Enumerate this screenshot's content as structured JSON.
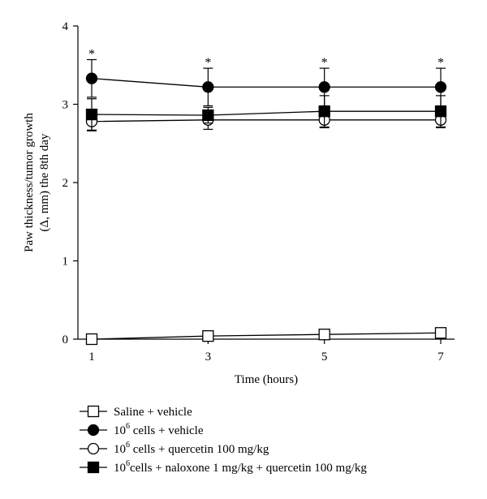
{
  "chart_data": {
    "type": "line",
    "xlabel": "Time (hours)",
    "ylabel_line1": "Paw thickness/tumor growth",
    "ylabel_line2": "(Δ, mm) the 8th day",
    "x": [
      1,
      3,
      5,
      7
    ],
    "xlim": [
      1,
      7
    ],
    "ylim": [
      0,
      4
    ],
    "xticks": [
      1,
      3,
      5,
      7
    ],
    "yticks": [
      0,
      1,
      2,
      3,
      4
    ],
    "grid": false,
    "legend_position": "bottom",
    "series": [
      {
        "name_parts": [
          "Saline + vehicle"
        ],
        "marker": "square-open",
        "values": [
          0.0,
          0.04,
          0.06,
          0.08
        ],
        "errors": [
          0.02,
          0.02,
          0.02,
          0.02
        ]
      },
      {
        "name_parts": [
          "10",
          "6",
          " cells + vehicle"
        ],
        "marker": "circle-filled",
        "values": [
          3.33,
          3.22,
          3.22,
          3.22
        ],
        "errors": [
          0.24,
          0.24,
          0.24,
          0.24
        ]
      },
      {
        "name_parts": [
          "10",
          "6",
          " cells + quercetin 100 mg/kg"
        ],
        "marker": "circle-open",
        "values": [
          2.78,
          2.8,
          2.8,
          2.8
        ],
        "errors": [
          0.12,
          0.12,
          0.1,
          0.1
        ]
      },
      {
        "name_parts": [
          "10",
          "6",
          "cells + naloxone 1 mg/kg + quercetin 100 mg/kg"
        ],
        "marker": "square-filled",
        "values": [
          2.87,
          2.86,
          2.91,
          2.91
        ],
        "errors": [
          0.2,
          0.1,
          0.2,
          0.2
        ]
      }
    ],
    "annotations": [
      {
        "x": 1,
        "y": 3.57,
        "text": "*"
      },
      {
        "x": 3,
        "y": 3.46,
        "text": "*"
      },
      {
        "x": 5,
        "y": 3.46,
        "text": "*"
      },
      {
        "x": 7,
        "y": 3.46,
        "text": "*"
      }
    ]
  }
}
